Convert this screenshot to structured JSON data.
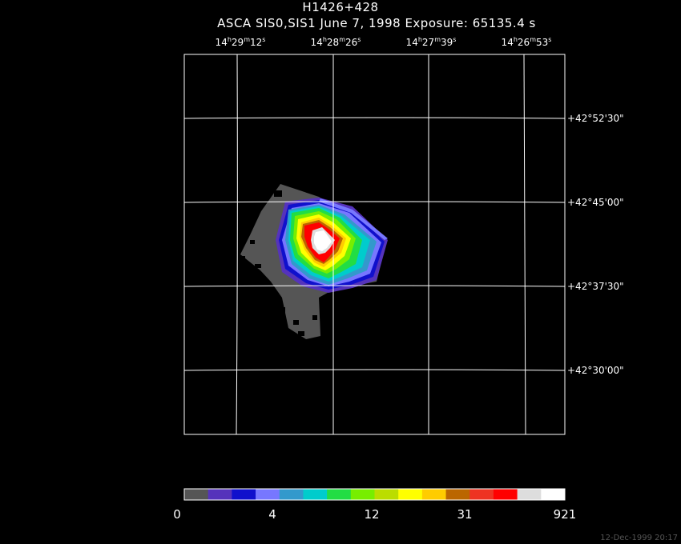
{
  "title": "H1426+428",
  "subtitle": "ASCA SIS0,SIS1 June 7, 1998 Exposure: 65135.4 s",
  "ra_ticks": [
    {
      "h": "14",
      "m": "29",
      "s": "12"
    },
    {
      "h": "14",
      "m": "28",
      "s": "26"
    },
    {
      "h": "14",
      "m": "27",
      "s": "39"
    },
    {
      "h": "14",
      "m": "26",
      "s": "53"
    }
  ],
  "dec_ticks": [
    "+42°52'30\"",
    "+42°45'00\"",
    "+42°37'30\"",
    "+42°30'00\""
  ],
  "colorbar": {
    "colors": [
      "#555555",
      "#5533bb",
      "#1010cc",
      "#7777ff",
      "#3399cc",
      "#00cccc",
      "#22dd44",
      "#77ee00",
      "#bbdd00",
      "#ffff00",
      "#ffcc00",
      "#bb6600",
      "#ee3322",
      "#ff0000",
      "#dddddd",
      "#ffffff"
    ],
    "labels": [
      "0",
      "4",
      "12",
      "31",
      "921"
    ]
  },
  "footer": "12-Dec-1999 20:17"
}
